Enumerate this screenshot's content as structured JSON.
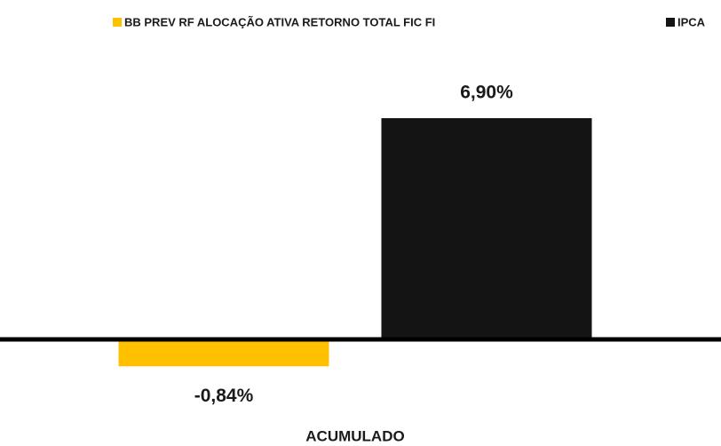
{
  "chart_data": {
    "type": "bar",
    "categories": [
      "ACUMULADO"
    ],
    "series": [
      {
        "name": "BB PREV RF ALOCAÇÃO ATIVA RETORNO TOTAL FIC FI",
        "color": "#ffc000",
        "values": [
          -0.84
        ],
        "value_labels": [
          "-0,84%"
        ]
      },
      {
        "name": "IPCA",
        "color": "#141414",
        "values": [
          6.9
        ],
        "value_labels": [
          "6,90%"
        ]
      }
    ],
    "legend": "top"
  }
}
